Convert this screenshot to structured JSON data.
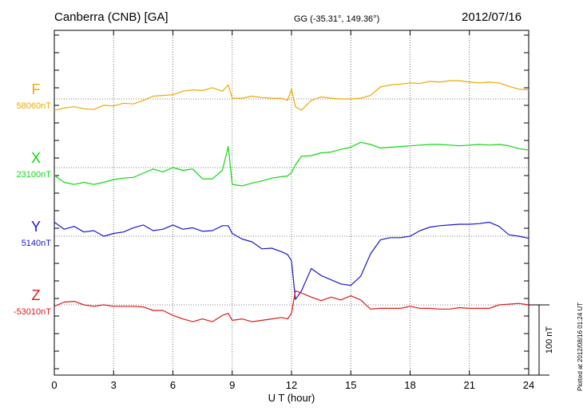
{
  "header": {
    "station": "Canberra (CNB)  [GA]",
    "coords": "GG (-35.31°, 149.36°)",
    "date": "2012/07/16"
  },
  "footnote": "Plotted at 2012/08/16 01:24  UT",
  "chart_data": {
    "type": "line",
    "xlabel": "U T (hour)",
    "xlim": [
      0,
      24
    ],
    "xticks": [
      "0",
      "3",
      "6",
      "9",
      "12",
      "15",
      "18",
      "21",
      "24"
    ],
    "grid": "dotted",
    "scale_bar": {
      "label": "100 nT",
      "value": 100
    },
    "series": [
      {
        "name": "F",
        "baseline_label": "58060nT",
        "baseline": 58060,
        "color": "#f0a800",
        "x": [
          0,
          0.5,
          1,
          1.5,
          2,
          2.5,
          3,
          3.5,
          4,
          4.5,
          5,
          5.5,
          6,
          6.5,
          7,
          7.5,
          8,
          8.5,
          8.8,
          9,
          9.5,
          10,
          10.5,
          11,
          11.5,
          11.8,
          12,
          12.2,
          12.5,
          13,
          13.5,
          14,
          14.5,
          15,
          15.5,
          16,
          16.5,
          17,
          17.5,
          18,
          18.5,
          19,
          19.5,
          20,
          20.5,
          21,
          21.5,
          22,
          22.5,
          23,
          23.5,
          24
        ],
        "y": [
          58044,
          58047,
          58049,
          58046,
          58045,
          58051,
          58050,
          58054,
          58053,
          58058,
          58064,
          58065,
          58066,
          58071,
          58073,
          58072,
          58076,
          58071,
          58080,
          58061,
          58061,
          58064,
          58062,
          58061,
          58061,
          58058,
          58074,
          58049,
          58044,
          58058,
          58063,
          58061,
          58060,
          58060,
          58061,
          58065,
          58077,
          58080,
          58081,
          58083,
          58082,
          58085,
          58084,
          58086,
          58086,
          58084,
          58083,
          58084,
          58083,
          58078,
          58074,
          58073
        ]
      },
      {
        "name": "X",
        "baseline_label": "23100nT",
        "baseline": 23100,
        "color": "#10d810",
        "x": [
          0,
          0.5,
          1,
          1.5,
          2,
          2.5,
          3,
          3.5,
          4,
          4.5,
          5,
          5.5,
          6,
          6.5,
          7,
          7.5,
          8,
          8.5,
          8.8,
          9,
          9.5,
          10,
          10.5,
          11,
          11.5,
          11.8,
          12,
          12.2,
          12.5,
          13,
          13.5,
          14,
          14.5,
          15,
          15.5,
          16,
          16.5,
          17,
          17.5,
          18,
          18.5,
          19,
          19.5,
          20,
          20.5,
          21,
          21.5,
          22,
          22.5,
          23,
          23.5,
          24
        ],
        "y": [
          23089,
          23079,
          23076,
          23079,
          23076,
          23079,
          23083,
          23085,
          23086,
          23092,
          23098,
          23094,
          23100,
          23096,
          23098,
          23084,
          23084,
          23096,
          23130,
          23076,
          23074,
          23078,
          23081,
          23085,
          23087,
          23088,
          23093,
          23104,
          23116,
          23117,
          23121,
          23122,
          23126,
          23129,
          23136,
          23133,
          23128,
          23129,
          23130,
          23131,
          23132,
          23133,
          23133,
          23132,
          23131,
          23132,
          23133,
          23132,
          23133,
          23131,
          23127,
          23125
        ]
      },
      {
        "name": "Y",
        "baseline_label": "5140nT",
        "baseline": 5140,
        "color": "#1818d0",
        "x": [
          0,
          0.5,
          1,
          1.5,
          2,
          2.5,
          3,
          3.5,
          4,
          4.5,
          5,
          5.5,
          6,
          6.5,
          7,
          7.5,
          8,
          8.5,
          8.8,
          9,
          9.5,
          10,
          10.5,
          11,
          11.5,
          11.8,
          12,
          12.2,
          12.5,
          13,
          13.5,
          14,
          14.5,
          15,
          15.5,
          16,
          16.5,
          17,
          17.5,
          18,
          18.5,
          19,
          19.5,
          20,
          20.5,
          21,
          21.5,
          22,
          22.5,
          23,
          23.5,
          24
        ],
        "y": [
          5160,
          5150,
          5154,
          5146,
          5148,
          5140,
          5144,
          5146,
          5152,
          5156,
          5148,
          5150,
          5156,
          5150,
          5152,
          5147,
          5148,
          5155,
          5155,
          5144,
          5136,
          5132,
          5122,
          5123,
          5118,
          5114,
          5105,
          5050,
          5062,
          5094,
          5084,
          5078,
          5072,
          5070,
          5083,
          5115,
          5135,
          5138,
          5138,
          5140,
          5148,
          5153,
          5155,
          5156,
          5157,
          5157,
          5158,
          5160,
          5154,
          5142,
          5140,
          5137
        ]
      },
      {
        "name": "Z",
        "baseline_label": "-53010nT",
        "baseline": -53010,
        "color": "#e01818",
        "x": [
          0,
          0.5,
          1,
          1.5,
          2,
          2.5,
          3,
          3.5,
          4,
          4.5,
          5,
          5.5,
          6,
          6.5,
          7,
          7.5,
          8,
          8.5,
          8.8,
          9,
          9.5,
          10,
          10.5,
          11,
          11.5,
          11.8,
          12,
          12.2,
          12.5,
          13,
          13.5,
          14,
          14.5,
          15,
          15.5,
          16,
          16.5,
          17,
          17.5,
          18,
          18.5,
          19,
          19.5,
          20,
          20.5,
          21,
          21.5,
          22,
          22.5,
          23,
          23.5,
          24
        ],
        "y": [
          -53012,
          -53006,
          -53005,
          -53010,
          -53012,
          -53010,
          -53012,
          -53012,
          -53012,
          -53013,
          -53018,
          -53018,
          -53025,
          -53030,
          -53034,
          -53030,
          -53034,
          -53025,
          -53022,
          -53032,
          -53030,
          -53034,
          -53032,
          -53030,
          -53028,
          -53030,
          -53022,
          -52990,
          -52993,
          -52999,
          -53004,
          -52999,
          -53003,
          -52997,
          -53003,
          -53016,
          -53015,
          -53015,
          -53015,
          -53012,
          -53015,
          -53015,
          -53016,
          -53016,
          -53014,
          -53015,
          -53015,
          -53015,
          -53010,
          -53009,
          -53008,
          -53010
        ]
      }
    ]
  }
}
